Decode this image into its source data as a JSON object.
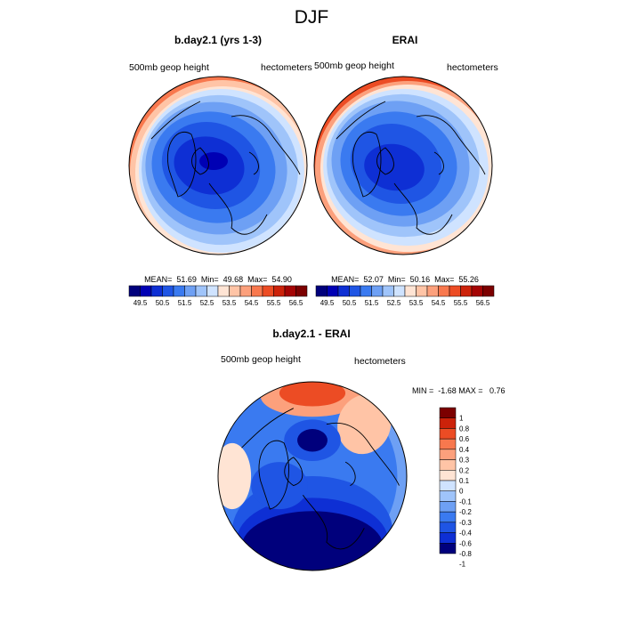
{
  "title": "DJF",
  "colors": {
    "full_palette": [
      "#00007c",
      "#0000b4",
      "#0e2fd4",
      "#1f55e4",
      "#3a7af0",
      "#6ea0f4",
      "#9fc4fa",
      "#cfe3ff",
      "#ffe4d4",
      "#ffc4a6",
      "#fca07c",
      "#f8784e",
      "#ec4c24",
      "#cc220a",
      "#a40404",
      "#7c0000"
    ],
    "diff_palette": [
      "#00007c",
      "#0e2fd4",
      "#1f55e4",
      "#3a7af0",
      "#6ea0f4",
      "#9fc4fa",
      "#cfe3ff",
      "#ffe4d4",
      "#ffc4a6",
      "#fca07c",
      "#f8784e",
      "#ec4c24",
      "#cc220a",
      "#7c0000"
    ]
  },
  "chart_data": [
    {
      "type": "heatmap",
      "title": "b.day2.1 (yrs 1-3)",
      "left_label": "500mb geop height",
      "right_label": "hectometers",
      "stats": {
        "mean": "51.69",
        "min": "49.68",
        "max": "54.90"
      },
      "stats_text": "MEAN=  51.69  Min=  49.68  Max=  54.90",
      "colorbar_labels": [
        "49.5",
        "50.5",
        "51.5",
        "52.5",
        "53.5",
        "54.5",
        "55.5",
        "56.5"
      ],
      "colorbar_levels": [
        49.5,
        50,
        50.5,
        51,
        51.5,
        52,
        52.5,
        53,
        53.5,
        54,
        54.5,
        55,
        55.5,
        56,
        56.5
      ],
      "projection": "north polar stereographic"
    },
    {
      "type": "heatmap",
      "title": "ERAI",
      "left_label": "500mb geop height",
      "right_label": "hectometers",
      "stats": {
        "mean": "52.07",
        "min": "50.16",
        "max": "55.26"
      },
      "stats_text": "MEAN=  52.07  Min=  50.16  Max=  55.26",
      "colorbar_labels": [
        "49.5",
        "50.5",
        "51.5",
        "52.5",
        "53.5",
        "54.5",
        "55.5",
        "56.5"
      ],
      "colorbar_levels": [
        49.5,
        50,
        50.5,
        51,
        51.5,
        52,
        52.5,
        53,
        53.5,
        54,
        54.5,
        55,
        55.5,
        56,
        56.5
      ],
      "projection": "north polar stereographic"
    },
    {
      "type": "heatmap",
      "title": "b.day2.1 - ERAI",
      "left_label": "500mb geop height",
      "right_label": "hectometers",
      "stats": {
        "min": "-1.68",
        "max": "0.76"
      },
      "stats_text": "MIN =  -1.68 MAX =   0.76",
      "colorbar_labels": [
        "1",
        "0.8",
        "0.6",
        "0.4",
        "0.3",
        "0.2",
        "0.1",
        "0",
        "-0.1",
        "-0.2",
        "-0.3",
        "-0.4",
        "-0.6",
        "-0.8",
        "-1"
      ],
      "projection": "north polar stereographic"
    }
  ]
}
